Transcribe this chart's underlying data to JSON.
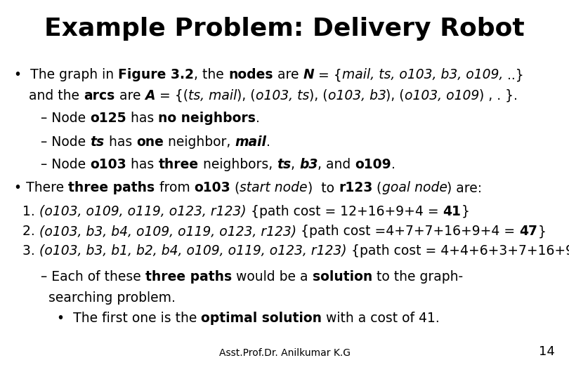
{
  "title": "Example Problem: Delivery Robot",
  "background_color": "#ffffff",
  "text_color": "#000000",
  "footer": "Asst.Prof.Dr. Anilkumar K.G",
  "page_number": "14",
  "title_fontsize": 26,
  "body_fontsize": 13.5,
  "footer_fontsize": 10
}
